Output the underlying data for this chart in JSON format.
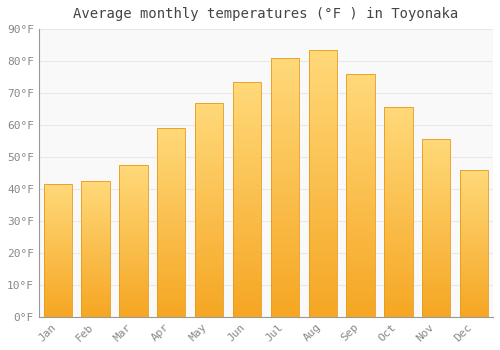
{
  "title": "Average monthly temperatures (°F ) in Toyonaka",
  "months": [
    "Jan",
    "Feb",
    "Mar",
    "Apr",
    "May",
    "Jun",
    "Jul",
    "Aug",
    "Sep",
    "Oct",
    "Nov",
    "Dec"
  ],
  "values": [
    41.5,
    42.5,
    47.5,
    59.0,
    67.0,
    73.5,
    81.0,
    83.5,
    76.0,
    65.5,
    55.5,
    46.0
  ],
  "bar_color_bottom": "#F5A623",
  "bar_color_top": "#FFD97A",
  "bar_edge_color": "#E89A1A",
  "background_color": "#ffffff",
  "plot_bg_color": "#f9f9f9",
  "ylim": [
    0,
    90
  ],
  "yticks": [
    0,
    10,
    20,
    30,
    40,
    50,
    60,
    70,
    80,
    90
  ],
  "title_fontsize": 10,
  "tick_fontsize": 8,
  "grid_color": "#e8e8e8",
  "bar_width": 0.75,
  "spine_color": "#999999"
}
